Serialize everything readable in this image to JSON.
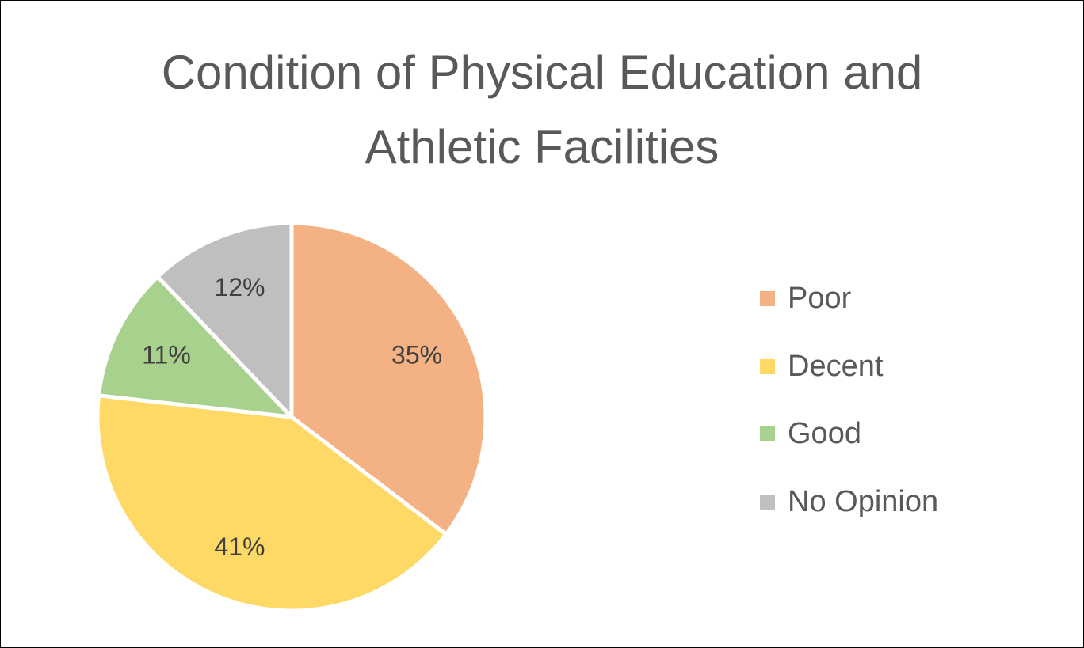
{
  "chart_data": {
    "type": "pie",
    "title_lines": [
      "Condition of Physical Education and",
      "Athletic Facilities"
    ],
    "slices": [
      {
        "label": "Poor",
        "value": 35,
        "data_label": "35%",
        "color": "#F4B183"
      },
      {
        "label": "Decent",
        "value": 41,
        "data_label": "41%",
        "color": "#FFD966"
      },
      {
        "label": "Good",
        "value": 11,
        "data_label": "11%",
        "color": "#A9D18E"
      },
      {
        "label": "No Opinion",
        "value": 12,
        "data_label": "12%",
        "color": "#BFBFBF"
      }
    ],
    "start_angle": "12 o'clock",
    "direction": "clockwise",
    "legend_position": "right"
  }
}
